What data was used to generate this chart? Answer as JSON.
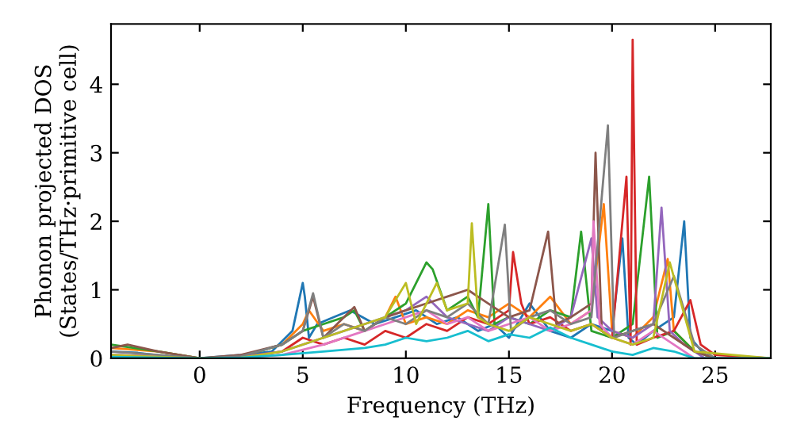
{
  "chart_data": {
    "type": "line",
    "xlabel": "Frequency (THz)",
    "ylabel": "Phonon projected DOS\n(States/THz·primitive cell)",
    "xlim": [
      -4.3,
      27.7
    ],
    "ylim": [
      0,
      4.88
    ],
    "xticks": [
      0,
      5,
      10,
      15,
      20,
      25
    ],
    "yticks": [
      0,
      1,
      2,
      3,
      4
    ],
    "grid": false,
    "marker": "none",
    "line_style": "solid",
    "series": [
      {
        "color": "#1f77b4",
        "x": [
          -4.3,
          -3,
          -1,
          0,
          2,
          3.5,
          4.5,
          5.0,
          5.1,
          5.3,
          5.7,
          6.5,
          7.3,
          8.5,
          9.5,
          10.5,
          11.5,
          12.5,
          13.5,
          14.3,
          15,
          16,
          17,
          18,
          19,
          20,
          20.5,
          20.8,
          21.2,
          22,
          23,
          23.5,
          23.8,
          24.5,
          25,
          27.7
        ],
        "values": [
          0.1,
          0.08,
          0.01,
          0,
          0.05,
          0.1,
          0.4,
          1.1,
          0.9,
          0.3,
          0.5,
          0.6,
          0.7,
          0.5,
          0.6,
          0.7,
          0.5,
          0.6,
          0.4,
          0.5,
          0.3,
          0.8,
          0.4,
          0.3,
          0.5,
          0.4,
          1.75,
          0.3,
          0.2,
          0.4,
          0.6,
          2.0,
          0.3,
          0.05,
          0,
          0
        ]
      },
      {
        "color": "#ff7f0e",
        "x": [
          -4.3,
          -2,
          0,
          2,
          4,
          5,
          5.3,
          6,
          7,
          8,
          9,
          9.5,
          10,
          11,
          12,
          13,
          14,
          15,
          16,
          17,
          18,
          19,
          19.6,
          20,
          21,
          22,
          22.7,
          23,
          24
        ],
        "values": [
          0.15,
          0.1,
          0,
          0.03,
          0.2,
          0.5,
          0.7,
          0.4,
          0.5,
          0.4,
          0.6,
          0.9,
          0.5,
          0.6,
          0.5,
          0.7,
          0.6,
          0.8,
          0.6,
          0.9,
          0.5,
          0.7,
          2.25,
          0.4,
          0.3,
          0.6,
          1.45,
          0.4,
          0.1
        ]
      },
      {
        "color": "#2ca02c",
        "x": [
          -4.3,
          -2,
          0,
          2,
          4,
          5,
          6,
          7,
          7.5,
          8,
          9,
          10,
          11,
          11.3,
          12,
          13,
          13.5,
          14,
          14.3,
          15,
          16,
          17,
          18,
          18.5,
          19,
          20,
          21,
          21.8,
          22.2,
          23,
          24,
          25,
          27.7
        ],
        "values": [
          0.2,
          0.1,
          0,
          0.03,
          0.2,
          0.4,
          0.5,
          0.6,
          0.7,
          0.4,
          0.6,
          0.8,
          1.4,
          1.3,
          0.7,
          0.9,
          0.6,
          2.25,
          0.5,
          0.6,
          0.5,
          0.7,
          0.6,
          1.85,
          0.4,
          0.3,
          0.5,
          2.65,
          0.3,
          0.4,
          0.1,
          0,
          0
        ]
      },
      {
        "color": "#d62728",
        "x": [
          2,
          4,
          5,
          6,
          7,
          8,
          9,
          10,
          11,
          12,
          13,
          14,
          15,
          15.2,
          15.6,
          16,
          17,
          18,
          19,
          20,
          20.7,
          20.9,
          21.0,
          21.2,
          22,
          23,
          23.8,
          24.3,
          25,
          27.7
        ],
        "values": [
          0.02,
          0.1,
          0.3,
          0.2,
          0.3,
          0.2,
          0.4,
          0.3,
          0.5,
          0.4,
          0.6,
          0.5,
          0.7,
          1.55,
          0.8,
          0.5,
          0.6,
          0.4,
          0.5,
          0.3,
          2.65,
          0.2,
          4.65,
          0.2,
          0.3,
          0.4,
          0.85,
          0.2,
          0.05,
          0
        ]
      },
      {
        "color": "#9467bd",
        "x": [
          -4.3,
          -2,
          0,
          2,
          4,
          5,
          6,
          7,
          8,
          9,
          10,
          11,
          12,
          13,
          14,
          15,
          16,
          17,
          18,
          19,
          19.3,
          20,
          21,
          22,
          22.4,
          22.8,
          23.5,
          24.5,
          27.7
        ],
        "values": [
          0.05,
          0.03,
          0,
          0.02,
          0.1,
          0.2,
          0.3,
          0.4,
          0.5,
          0.6,
          0.7,
          0.9,
          0.6,
          0.5,
          0.4,
          0.6,
          0.5,
          0.4,
          0.6,
          1.75,
          0.6,
          0.4,
          0.3,
          0.5,
          2.2,
          0.4,
          0.2,
          0,
          0
        ]
      },
      {
        "color": "#8c564b",
        "x": [
          -4.3,
          -3.5,
          -2,
          0,
          2,
          4,
          5,
          5.5,
          6,
          7,
          7.5,
          8,
          9,
          10,
          11,
          12,
          13,
          14,
          15,
          16,
          16.9,
          17.3,
          18,
          19,
          19.2,
          19.5,
          20,
          21,
          22,
          23,
          24,
          25,
          27.7
        ],
        "values": [
          0.15,
          0.2,
          0.1,
          0,
          0.05,
          0.2,
          0.4,
          0.9,
          0.3,
          0.6,
          0.75,
          0.4,
          0.6,
          0.7,
          0.8,
          0.9,
          1.0,
          0.8,
          0.6,
          0.7,
          1.85,
          0.5,
          0.6,
          0.8,
          3.0,
          0.4,
          0.3,
          0.4,
          0.5,
          0.3,
          0.1,
          0,
          0
        ]
      },
      {
        "color": "#e377c2",
        "x": [
          -4.3,
          -2,
          0,
          2,
          4,
          6,
          8,
          9,
          10,
          11,
          12,
          13,
          14,
          15,
          16,
          17,
          18,
          19,
          19.1,
          19.4,
          20,
          21,
          22,
          23,
          24,
          27.7
        ],
        "values": [
          0.05,
          0.03,
          0,
          0.01,
          0.05,
          0.2,
          0.4,
          0.5,
          0.6,
          0.7,
          0.5,
          0.6,
          0.4,
          0.5,
          0.6,
          0.4,
          0.5,
          0.7,
          2.0,
          0.5,
          0.3,
          0.2,
          0.4,
          0.2,
          0,
          0
        ]
      },
      {
        "color": "#7f7f7f",
        "x": [
          -4.3,
          -2,
          0,
          2,
          4,
          5,
          5.5,
          6,
          7,
          8,
          9,
          10,
          11,
          12,
          13,
          14,
          14.8,
          15.1,
          16,
          17,
          18,
          19,
          19.8,
          20.1,
          21,
          22,
          23,
          24,
          25,
          27.7
        ],
        "values": [
          0.1,
          0.05,
          0,
          0.03,
          0.2,
          0.4,
          0.95,
          0.3,
          0.5,
          0.4,
          0.6,
          0.5,
          0.7,
          0.6,
          0.8,
          0.5,
          1.95,
          0.4,
          0.6,
          0.7,
          0.5,
          0.6,
          3.4,
          0.3,
          0.4,
          0.5,
          1.2,
          0.2,
          0,
          0
        ]
      },
      {
        "color": "#bcbd22",
        "x": [
          -4.3,
          -2,
          0,
          2,
          4,
          6,
          8,
          9,
          10,
          10.5,
          11,
          11.5,
          12,
          13,
          13.2,
          13.5,
          14,
          15,
          16,
          17,
          18,
          19,
          20,
          21,
          22,
          22.8,
          24,
          27.7
        ],
        "values": [
          0.05,
          0.02,
          0,
          0.01,
          0.1,
          0.3,
          0.5,
          0.6,
          1.1,
          0.5,
          0.8,
          1.1,
          0.7,
          0.8,
          1.97,
          0.6,
          0.5,
          0.4,
          0.6,
          0.5,
          0.4,
          0.5,
          0.3,
          0.2,
          0.3,
          1.4,
          0.1,
          0
        ]
      },
      {
        "color": "#17becf",
        "x": [
          -4.3,
          -2,
          0,
          2,
          4,
          6,
          8,
          9,
          10,
          11,
          12,
          13,
          14,
          15,
          16,
          17,
          18,
          19,
          20,
          21,
          22,
          23,
          24,
          27.7
        ],
        "values": [
          0.02,
          0.01,
          0,
          0.01,
          0.05,
          0.1,
          0.15,
          0.2,
          0.3,
          0.25,
          0.3,
          0.4,
          0.25,
          0.35,
          0.3,
          0.45,
          0.3,
          0.2,
          0.1,
          0.05,
          0.15,
          0.1,
          0,
          0
        ]
      }
    ]
  }
}
